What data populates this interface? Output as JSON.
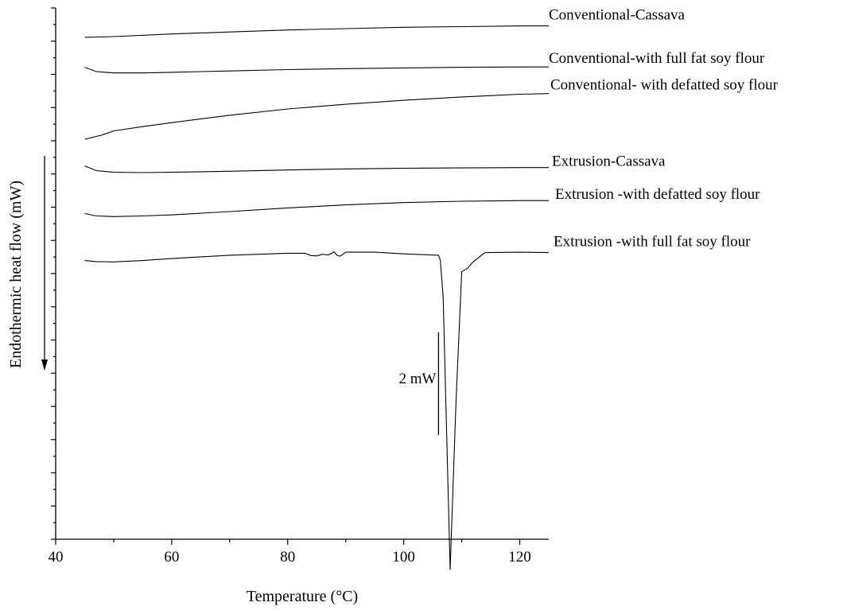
{
  "chart_data": {
    "type": "line",
    "title": "",
    "xlabel": "Temperature (°C)",
    "ylabel": "Endothermic  heat flow (mW)",
    "xlim": [
      40,
      125
    ],
    "x_ticks": [
      40,
      60,
      80,
      100,
      120
    ],
    "y_ticks_shown": false,
    "y_direction_arrow": "down",
    "legend": "labels-at-line-ends",
    "grid": false,
    "scale_bar": {
      "label": "2 mW",
      "value_mw": 2,
      "x": 106
    },
    "series": [
      {
        "name": "Conventional-Cassava",
        "x": [
          45,
          50,
          60,
          70,
          80,
          90,
          100,
          110,
          120,
          125
        ],
        "y": [
          0.48,
          0.5,
          0.58,
          0.64,
          0.7,
          0.74,
          0.78,
          0.8,
          0.82,
          0.82
        ]
      },
      {
        "name": "Conventional-with full fat soy flour",
        "x": [
          45,
          47,
          50,
          55,
          60,
          70,
          80,
          90,
          100,
          110,
          120,
          125
        ],
        "y": [
          -0.42,
          -0.55,
          -0.59,
          -0.59,
          -0.57,
          -0.53,
          -0.49,
          -0.46,
          -0.44,
          -0.42,
          -0.41,
          -0.41
        ]
      },
      {
        "name": "Conventional- with defatted soy flour",
        "x": [
          45,
          48,
          50,
          55,
          60,
          70,
          80,
          90,
          100,
          110,
          120,
          125
        ],
        "y": [
          -2.58,
          -2.45,
          -2.33,
          -2.2,
          -2.08,
          -1.86,
          -1.67,
          -1.53,
          -1.41,
          -1.31,
          -1.23,
          -1.21
        ]
      },
      {
        "name": "Extrusion-Cassava",
        "x": [
          45,
          47,
          50,
          55,
          60,
          70,
          80,
          90,
          100,
          110,
          120,
          125
        ],
        "y": [
          -3.38,
          -3.52,
          -3.57,
          -3.58,
          -3.57,
          -3.54,
          -3.5,
          -3.47,
          -3.45,
          -3.44,
          -3.43,
          -3.43
        ]
      },
      {
        "name": "Extrusion -with defatted soy flour",
        "x": [
          45,
          47,
          50,
          55,
          60,
          70,
          80,
          90,
          100,
          110,
          120,
          125
        ],
        "y": [
          -4.81,
          -4.88,
          -4.9,
          -4.88,
          -4.85,
          -4.75,
          -4.64,
          -4.55,
          -4.48,
          -4.44,
          -4.42,
          -4.42
        ]
      },
      {
        "name": "Extrusion -with full fat soy flour",
        "x": [
          45,
          47,
          50,
          55,
          60,
          70,
          80,
          83,
          84,
          85,
          86,
          87,
          88,
          88.5,
          89,
          89.5,
          90,
          95,
          100,
          103,
          106,
          106.3,
          106.8,
          108,
          109,
          110,
          111,
          112,
          114,
          120,
          125
        ],
        "y": [
          -6.22,
          -6.25,
          -6.26,
          -6.22,
          -6.16,
          -6.06,
          -6.0,
          -6.0,
          -6.07,
          -6.08,
          -6.03,
          -6.05,
          -5.96,
          -6.06,
          -6.09,
          -6.03,
          -5.97,
          -5.97,
          -6.02,
          -6.04,
          -6.06,
          -6.2,
          -7.3,
          -15.5,
          -10.5,
          -6.55,
          -6.45,
          -6.25,
          -5.98,
          -5.97,
          -5.98
        ]
      }
    ]
  }
}
